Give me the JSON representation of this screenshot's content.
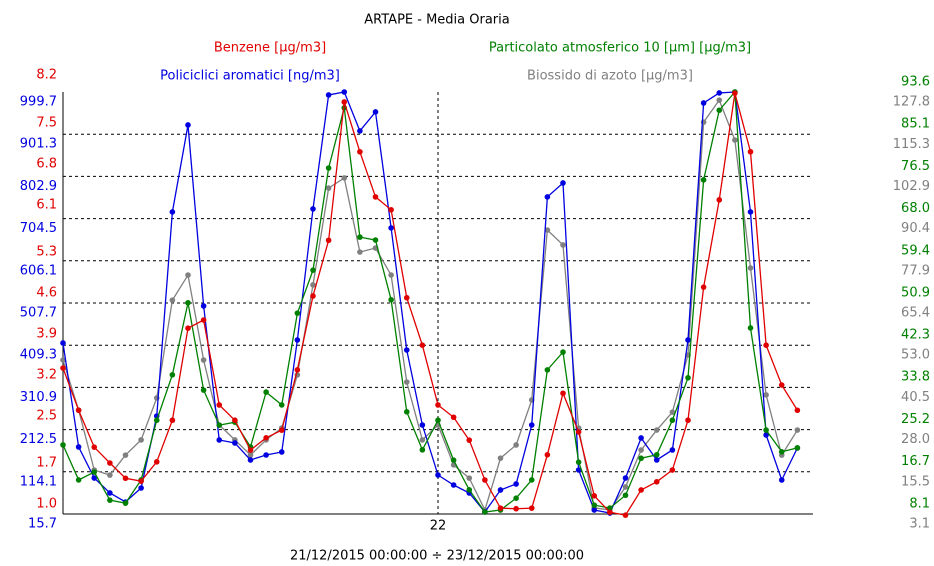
{
  "chart_data": {
    "type": "line",
    "title": "ARTAPE - Media Oraria",
    "x_label": "21/12/2015 00:00:00 ÷ 23/12/2015 00:00:00",
    "categories": [
      null,
      null,
      null,
      null,
      null,
      null,
      null,
      null,
      null,
      null,
      null,
      null,
      null,
      null,
      null,
      null,
      null,
      null,
      null,
      null,
      null,
      null,
      null,
      null,
      "22",
      null,
      null,
      null,
      null,
      null,
      null,
      null,
      null,
      null,
      null,
      null,
      null,
      null,
      null,
      null,
      null,
      null,
      null,
      null,
      null,
      null,
      null,
      null
    ],
    "grid": true,
    "series": [
      {
        "name": "Benzene [µg/m3]",
        "color": "#e00000",
        "axis": "left",
        "ylim": [
          1.0,
          8.2
        ],
        "yticks": [
          {
            "value": 1.0,
            "label": "1.0"
          },
          1.7,
          2.5,
          3.2,
          3.9,
          4.6,
          5.3,
          6.1,
          6.8,
          7.5,
          8.2
        ],
        "values": [
          3.49,
          2.77,
          2.14,
          1.87,
          1.61,
          1.56,
          1.89,
          2.6,
          4.17,
          4.31,
          2.86,
          2.6,
          2.09,
          2.3,
          2.43,
          3.46,
          4.72,
          5.67,
          8.03,
          7.18,
          6.41,
          6.19,
          4.69,
          3.88,
          2.86,
          2.65,
          2.26,
          1.58,
          1.1,
          1.09,
          1.1,
          2.01,
          3.06,
          2.4,
          1.31,
          1.03,
          0.98,
          1.41,
          1.55,
          1.75,
          2.6,
          4.87,
          6.36,
          8.18,
          7.18,
          3.88,
          3.2,
          2.77
        ]
      },
      {
        "name": "Particolato atmosferico 10 [µm] [µg/m3]",
        "color": "#008000",
        "axis": "right",
        "ylim": [
          8.1,
          93.6
        ],
        "yticks": [
          8.1,
          16.7,
          25.2,
          33.8,
          42.3,
          50.9,
          59.4,
          {
            "value": 68.0,
            "label": "68.0"
          },
          76.5,
          85.1,
          93.6
        ],
        "values": [
          22.1,
          15.0,
          16.6,
          10.9,
          10.3,
          15.0,
          27.1,
          36.3,
          50.9,
          33.2,
          26.1,
          26.7,
          21.7,
          32.8,
          30.2,
          48.8,
          57.5,
          78.2,
          90.4,
          64.2,
          63.6,
          51.5,
          28.8,
          21.1,
          27.1,
          19.0,
          13.0,
          8.5,
          8.9,
          11.3,
          15.0,
          37.3,
          40.9,
          18.6,
          9.9,
          9.3,
          11.9,
          19.4,
          20.1,
          27.1,
          35.7,
          75.8,
          89.9,
          93.6,
          45.8,
          25.1,
          20.7,
          21.5
        ]
      },
      {
        "name": "Policiclici aromatici [ng/m3]",
        "color": "#0000e0",
        "axis": "left",
        "ylim": [
          15.7,
          999.7
        ],
        "yticks": [
          15.7,
          114.1,
          212.5,
          310.9,
          409.3,
          507.7,
          606.1,
          704.5,
          802.9,
          901.3,
          999.7
        ],
        "values": [
          414.5,
          172,
          99.6,
          64.7,
          43.7,
          76.3,
          244.2,
          720,
          922.8,
          500.8,
          188.3,
          181.3,
          141.7,
          153.3,
          160.3,
          421.5,
          727,
          992.8,
          999.7,
          908.9,
          953.2,
          682.7,
          398.1,
          223.2,
          106.6,
          83.3,
          64.7,
          20.4,
          71.7,
          85.7,
          223.2,
          755,
          787.6,
          118.3,
          25,
          18,
          99.6,
          193,
          141.7,
          165,
          421.5,
          974.1,
          997.5,
          999.7,
          720,
          200,
          95,
          169.6
        ]
      },
      {
        "name": "Biossido di azoto [µg/m3]",
        "color": "#808080",
        "axis": "right",
        "ylim": [
          3.1,
          127.8
        ],
        "yticks": [
          3.1,
          15.5,
          {
            "value": 28.0,
            "label": "28.0"
          },
          40.5,
          {
            "value": 53.0,
            "label": "53.0"
          },
          65.4,
          77.9,
          90.4,
          102.9,
          115.3,
          127.8
        ],
        "values": [
          48.6,
          33.8,
          16.1,
          14.6,
          20.5,
          25.0,
          37.4,
          66.3,
          73.7,
          48.6,
          29.4,
          25.0,
          20.5,
          25.0,
          28.5,
          44.2,
          70.8,
          99.4,
          102.4,
          80.5,
          81.7,
          73.7,
          42.1,
          25.0,
          29.4,
          17.6,
          13.7,
          4.3,
          19.6,
          23.5,
          36.8,
          87.0,
          82.6,
          28.5,
          4.9,
          4.3,
          11.1,
          22.0,
          27.9,
          33.2,
          50.1,
          118.9,
          125.4,
          113.6,
          75.8,
          38.3,
          20.5,
          27.9
        ]
      }
    ]
  }
}
